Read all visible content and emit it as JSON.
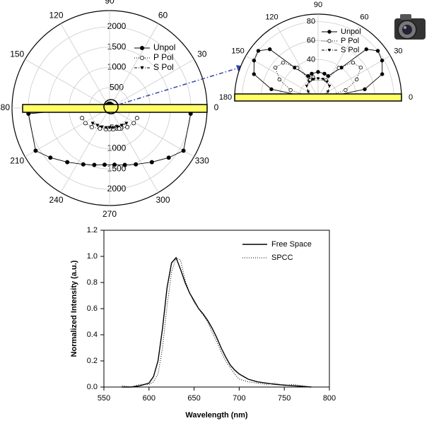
{
  "chart_data": [
    {
      "type": "polar",
      "rlim": [
        0,
        2400
      ],
      "rticks": [
        500,
        1000,
        1500,
        2000
      ],
      "thetalim": [
        0,
        360
      ],
      "thetaticks": [
        0,
        30,
        60,
        90,
        120,
        150,
        180,
        210,
        240,
        270,
        300,
        330
      ],
      "series": [
        {
          "name": "Unpol",
          "color": "#000000",
          "marker": "filled-circle",
          "linestyle": "solid",
          "theta": [
            20,
            50,
            80,
            100,
            130,
            160,
            184,
            210,
            220,
            232,
            245,
            255,
            265,
            275,
            285,
            295,
            308,
            320,
            330,
            356
          ],
          "r": [
            90,
            100,
            110,
            110,
            100,
            90,
            2000,
            2100,
            1900,
            1690,
            1530,
            1450,
            1400,
            1400,
            1450,
            1530,
            1690,
            1900,
            2100,
            2000
          ]
        },
        {
          "name": "P Pol",
          "color": "#000000",
          "marker": "open-circle",
          "linestyle": "dotted",
          "theta": [
            200,
            212,
            227,
            245,
            260,
            270,
            280,
            295,
            313,
            328,
            340
          ],
          "r": [
            720,
            700,
            640,
            560,
            530,
            520,
            530,
            560,
            640,
            700,
            720
          ]
        },
        {
          "name": "S Pol",
          "color": "#000000",
          "marker": "triangle-down",
          "linestyle": "dashdot",
          "theta": [
            222,
            235,
            248,
            260,
            270,
            280,
            292,
            305,
            318
          ],
          "r": [
            560,
            520,
            500,
            490,
            480,
            490,
            500,
            520,
            560
          ]
        }
      ]
    },
    {
      "type": "polar",
      "rlim": [
        0,
        88
      ],
      "rticks": [
        20,
        40,
        60,
        80
      ],
      "thetalim": [
        0,
        180
      ],
      "thetaticks": [
        0,
        30,
        60,
        90,
        120,
        150,
        180
      ],
      "series": [
        {
          "name": "Unpol",
          "color": "#000000",
          "marker": "filled-circle",
          "linestyle": "solid",
          "theta": [
            178,
            170,
            160,
            150,
            142,
            135,
            128,
            115,
            105,
            90,
            75,
            65,
            52,
            45,
            38,
            30,
            20,
            10,
            2
          ],
          "r": [
            10,
            50,
            72,
            78,
            80,
            72,
            40,
            25,
            26,
            27,
            26,
            25,
            40,
            72,
            80,
            78,
            72,
            50,
            10
          ]
        },
        {
          "name": "P Pol",
          "color": "#000000",
          "marker": "open-circle",
          "linestyle": "dotted",
          "theta": [
            175,
            165,
            155,
            145,
            135,
            125,
            115,
            65,
            55,
            45,
            35,
            25,
            15,
            5
          ],
          "r": [
            8,
            30,
            45,
            55,
            52,
            38,
            20,
            20,
            38,
            52,
            55,
            45,
            30,
            8
          ]
        },
        {
          "name": "S Pol",
          "color": "#000000",
          "marker": "triangle-down",
          "linestyle": "dashdot",
          "theta": [
            165,
            150,
            135,
            120,
            105,
            90,
            75,
            60,
            45,
            30,
            15
          ],
          "r": [
            6,
            12,
            17,
            19,
            20,
            20,
            20,
            19,
            17,
            12,
            6
          ]
        }
      ]
    },
    {
      "type": "line",
      "xlabel": "Wavelength (nm)",
      "ylabel": "Normalized Intensity (a.u.)",
      "xlim": [
        550,
        800
      ],
      "xticks": [
        550,
        600,
        650,
        700,
        750,
        800
      ],
      "ylim": [
        0,
        1.2
      ],
      "yticks": [
        {
          "value": 0,
          "label": "0.0"
        },
        {
          "value": 0.2,
          "label": "0.2"
        },
        {
          "value": 0.4,
          "label": "0.4"
        },
        {
          "value": 0.6,
          "label": "0.6"
        },
        {
          "value": 0.8,
          "label": "0.8"
        },
        {
          "value": 1,
          "label": "1.0"
        },
        {
          "value": 1.2,
          "label": "1.2"
        }
      ],
      "x": [
        570,
        580,
        590,
        600,
        605,
        610,
        615,
        620,
        625,
        630,
        635,
        640,
        645,
        650,
        655,
        660,
        665,
        670,
        675,
        680,
        685,
        690,
        695,
        700,
        710,
        720,
        730,
        740,
        750,
        760,
        770,
        780
      ],
      "series": [
        {
          "name": "Free Space",
          "color": "#000000",
          "linestyle": "solid",
          "values": [
            0,
            0,
            0.01,
            0.03,
            0.08,
            0.2,
            0.45,
            0.76,
            0.95,
            0.99,
            0.9,
            0.8,
            0.72,
            0.66,
            0.6,
            0.56,
            0.51,
            0.45,
            0.38,
            0.3,
            0.23,
            0.17,
            0.13,
            0.1,
            0.06,
            0.04,
            0.03,
            0.02,
            0.015,
            0.01,
            0.005,
            0
          ]
        },
        {
          "name": "SPCC",
          "color": "#000000",
          "linestyle": "dotted",
          "values": [
            0.01,
            0,
            0.02,
            0.02,
            0.04,
            0.1,
            0.3,
            0.62,
            0.88,
            0.99,
            0.97,
            0.82,
            0.72,
            0.65,
            0.6,
            0.55,
            0.5,
            0.42,
            0.35,
            0.27,
            0.2,
            0.15,
            0.1,
            0.06,
            0.04,
            0.03,
            0.02,
            0.03,
            0.01,
            0.02,
            0.01,
            0
          ]
        }
      ]
    }
  ]
}
